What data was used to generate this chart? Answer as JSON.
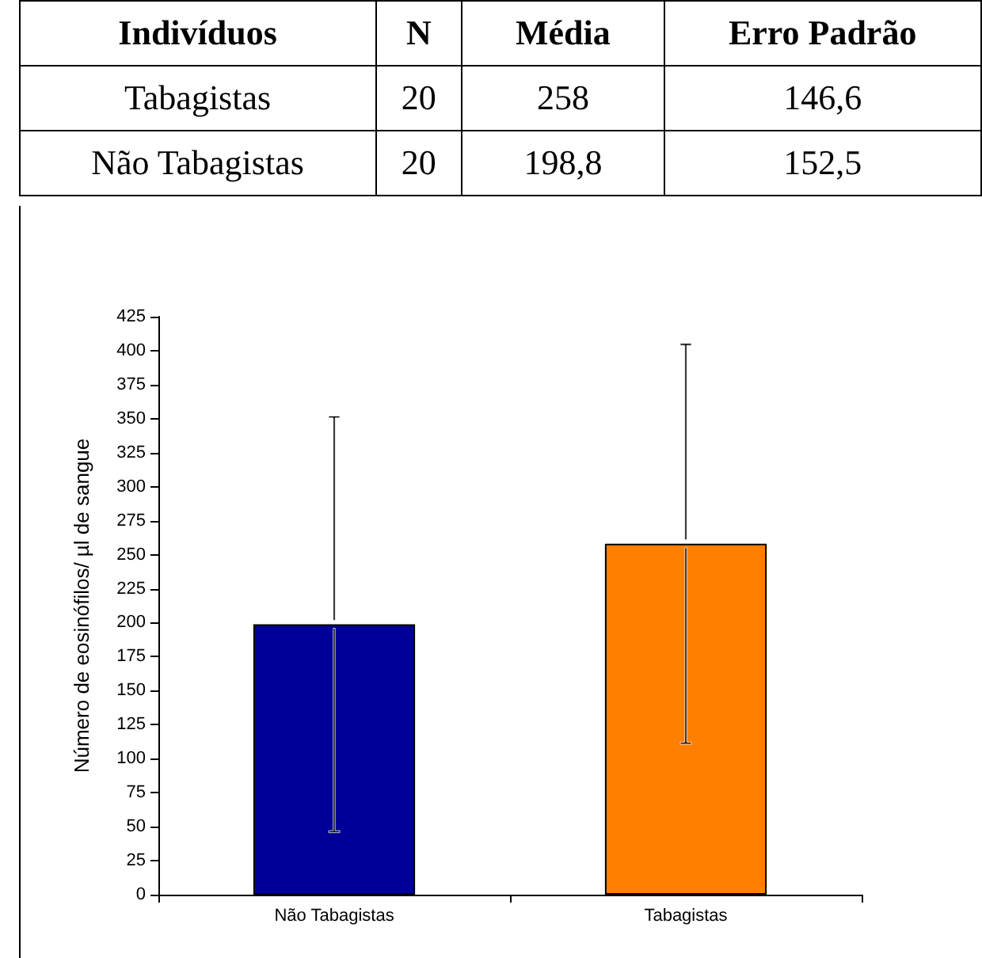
{
  "chart_data": {
    "type": "bar",
    "ylabel": "Número de eosinófilos/ µl de sangue",
    "categories": [
      "Não Tabagistas",
      "Tabagistas"
    ],
    "values": [
      198.8,
      258
    ],
    "colors": [
      "#000099",
      "#ff8000"
    ],
    "errors": [
      152.5,
      146.6
    ],
    "ylim": [
      0,
      425
    ],
    "yticks": [
      0,
      25,
      50,
      75,
      100,
      125,
      150,
      175,
      200,
      225,
      250,
      275,
      300,
      325,
      350,
      375,
      400,
      425
    ],
    "grid": false,
    "annotations": [
      "Indivíduos",
      "N",
      "Média",
      "Erro Padrão",
      "Tabagistas",
      "20",
      "258",
      "146,6",
      "Não Tabagistas",
      "20",
      "198,8",
      "152,5"
    ]
  }
}
